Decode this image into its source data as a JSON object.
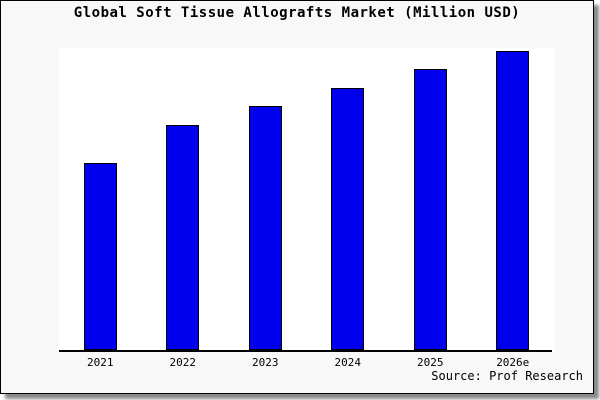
{
  "title": "Global Soft Tissue Allografts Market (Million USD)",
  "source": "Source: Prof Research",
  "colors": {
    "page_bg": "#f8f8f8",
    "plot_bg": "#ffffff",
    "bar_fill": "#0000ee",
    "bar_border": "#000000",
    "frame_border": "#000000",
    "frame_shadow": "#8a8a8a",
    "text": "#000000"
  },
  "chart_data": {
    "type": "bar",
    "title": "Global Soft Tissue Allografts Market (Million USD)",
    "categories": [
      "2021",
      "2022",
      "2023",
      "2024",
      "2025",
      "2026e"
    ],
    "values": [
      62.7,
      75.3,
      81.7,
      87.7,
      94.0,
      100.0
    ],
    "values_are_estimated_relative": true,
    "xlabel": "",
    "ylabel": "",
    "ylim": [
      0,
      101
    ],
    "grid": false,
    "y_axis_visible": false,
    "legend": "none",
    "bar_color": "#0000ee"
  }
}
